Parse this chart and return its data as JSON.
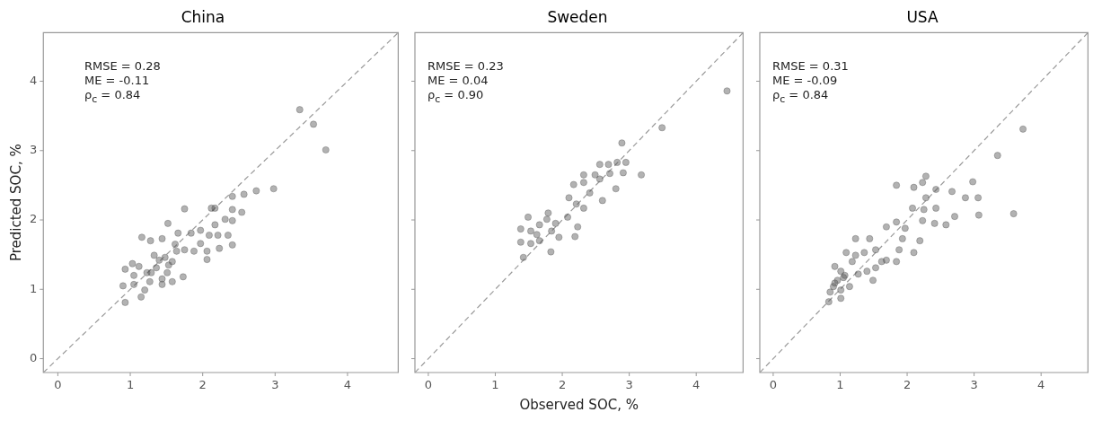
{
  "chart_data": [
    {
      "type": "scatter",
      "title": "China",
      "ylabel": "Predicted SOC, %",
      "xlim": [
        -0.2,
        4.7
      ],
      "ylim": [
        -0.2,
        4.7
      ],
      "xticks": [
        0,
        1,
        2,
        3,
        4
      ],
      "yticks": [
        0,
        1,
        2,
        3,
        4
      ],
      "grid": false,
      "legend": false,
      "marker": "circle",
      "annotations": [
        "RMSE = 0.28",
        "ME = -0.11",
        "ρ$_{c}$ = 0.84"
      ],
      "series": [
        {
          "type": "line",
          "color": "#999999",
          "line_style": "dashed",
          "marker": "none",
          "x": [
            -0.2,
            4.7
          ],
          "values": [
            -0.2,
            4.7
          ]
        },
        {
          "color": "#555555",
          "x": [
            3.34,
            3.53,
            3.7,
            2.98,
            2.74,
            2.57,
            2.41,
            2.54,
            2.41,
            2.12,
            2.17,
            1.75,
            2.31,
            2.41,
            2.17,
            1.52,
            1.97,
            1.84,
            1.66,
            2.09,
            2.21,
            2.35,
            1.16,
            1.28,
            1.44,
            1.62,
            2.41,
            1.97,
            2.23,
            2.06,
            1.88,
            2.06,
            1.75,
            1.48,
            1.4,
            1.58,
            1.53,
            1.36,
            1.03,
            1.12,
            0.93,
            1.05,
            1.23,
            1.44,
            1.73,
            1.58,
            1.44,
            1.27,
            1.05,
            0.9,
            1.2,
            1.15,
            0.93,
            1.33,
            1.64,
            1.29,
            1.51
          ],
          "values": [
            3.59,
            3.38,
            3.01,
            2.45,
            2.42,
            2.37,
            2.34,
            2.11,
            2.15,
            2.17,
            2.17,
            2.16,
            2.01,
            1.99,
            1.93,
            1.95,
            1.85,
            1.81,
            1.81,
            1.78,
            1.78,
            1.78,
            1.75,
            1.7,
            1.73,
            1.65,
            1.64,
            1.66,
            1.59,
            1.55,
            1.55,
            1.43,
            1.57,
            1.46,
            1.42,
            1.4,
            1.35,
            1.31,
            1.37,
            1.33,
            1.29,
            1.2,
            1.24,
            1.15,
            1.18,
            1.11,
            1.07,
            1.11,
            1.07,
            1.05,
            0.99,
            0.89,
            0.81,
            1.49,
            1.55,
            1.24,
            1.24
          ]
        }
      ]
    },
    {
      "type": "scatter",
      "title": "Sweden",
      "xlabel": "Observed SOC, %",
      "xlim": [
        -0.2,
        4.7
      ],
      "ylim": [
        -0.2,
        4.7
      ],
      "xticks": [
        0,
        1,
        2,
        3,
        4
      ],
      "yticks": [
        0,
        1,
        2,
        3,
        4
      ],
      "tick_labels": "x",
      "grid": false,
      "legend": false,
      "marker": "circle",
      "annotations": [
        "RMSE = 0.23",
        "ME = 0.04",
        "ρ$_{c}$ = 0.90"
      ],
      "series": [
        {
          "type": "line",
          "color": "#999999",
          "line_style": "dashed",
          "marker": "none",
          "x": [
            -0.2,
            4.7
          ],
          "values": [
            -0.2,
            4.7
          ]
        },
        {
          "color": "#555555",
          "x": [
            4.46,
            3.49,
            2.89,
            2.95,
            2.82,
            2.56,
            2.69,
            2.91,
            3.18,
            2.71,
            2.56,
            2.32,
            2.17,
            2.32,
            2.8,
            2.41,
            2.6,
            2.1,
            2.21,
            2.32,
            2.08,
            2.23,
            2.19,
            1.9,
            1.79,
            1.77,
            1.49,
            1.66,
            1.38,
            1.53,
            1.62,
            1.95,
            1.38,
            1.53,
            1.66,
            1.83,
            1.42,
            1.84,
            2.49
          ],
          "values": [
            3.86,
            3.33,
            3.11,
            2.83,
            2.83,
            2.8,
            2.8,
            2.68,
            2.65,
            2.67,
            2.59,
            2.65,
            2.51,
            2.54,
            2.45,
            2.39,
            2.28,
            2.32,
            2.23,
            2.17,
            2.04,
            1.9,
            1.76,
            1.95,
            2.1,
            2.01,
            2.04,
            1.93,
            1.87,
            1.84,
            1.79,
            1.75,
            1.68,
            1.66,
            1.7,
            1.54,
            1.46,
            1.84,
            2.65
          ]
        }
      ]
    },
    {
      "type": "scatter",
      "title": "USA",
      "xlim": [
        -0.2,
        4.7
      ],
      "ylim": [
        -0.2,
        4.7
      ],
      "xticks": [
        0,
        1,
        2,
        3,
        4
      ],
      "yticks": [
        0,
        1,
        2,
        3,
        4
      ],
      "tick_labels": "x",
      "grid": false,
      "legend": false,
      "marker": "circle",
      "annotations": [
        "RMSE = 0.31",
        "ME = -0.09",
        "ρ$_{c}$ = 0.84"
      ],
      "series": [
        {
          "type": "line",
          "color": "#999999",
          "line_style": "dashed",
          "marker": "none",
          "x": [
            -0.2,
            4.7
          ],
          "values": [
            -0.2,
            4.7
          ]
        },
        {
          "color": "#555555",
          "x": [
            3.73,
            3.35,
            2.98,
            3.59,
            3.07,
            2.71,
            3.06,
            2.87,
            2.67,
            2.28,
            2.23,
            2.1,
            1.84,
            2.28,
            2.43,
            2.08,
            2.25,
            2.43,
            2.23,
            2.41,
            2.58,
            1.84,
            1.97,
            1.93,
            2.19,
            2.1,
            1.88,
            1.69,
            1.44,
            1.23,
            1.53,
            1.36,
            1.09,
            1.69,
            1.84,
            1.53,
            1.18,
            0.92,
            1.01,
            1.07,
            0.96,
            0.9,
            1.01,
            1.14,
            0.85,
            1.01,
            0.83,
            1.27,
            1.4,
            1.49,
            1.62,
            1.23,
            1.05,
            0.92
          ],
          "values": [
            3.31,
            2.93,
            2.55,
            2.09,
            2.07,
            2.05,
            2.32,
            2.32,
            2.41,
            2.63,
            2.54,
            2.47,
            2.5,
            2.32,
            2.44,
            2.17,
            2.15,
            2.17,
            1.99,
            1.95,
            1.93,
            1.97,
            1.88,
            1.73,
            1.7,
            1.53,
            1.57,
            1.9,
            1.73,
            1.73,
            1.57,
            1.53,
            1.53,
            1.42,
            1.4,
            1.31,
            1.4,
            1.33,
            1.26,
            1.2,
            1.13,
            1.04,
            0.99,
            1.04,
            0.96,
            0.87,
            0.82,
            1.22,
            1.26,
            1.13,
            1.4,
            1.49,
            1.17,
            1.09
          ]
        }
      ]
    }
  ]
}
